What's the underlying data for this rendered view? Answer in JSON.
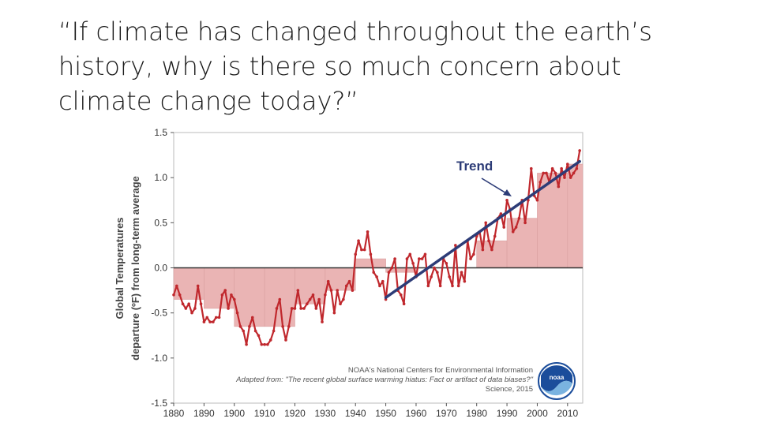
{
  "slide": {
    "title_line1": "“If climate has changed throughout the earth’s",
    "title_line2": "history, why is there so much concern about",
    "title_line3": "climate change today?”"
  },
  "chart_data": {
    "type": "line",
    "title": "",
    "ylabel_line1": "Global Temperatures",
    "ylabel_line2": "departure (ºF) from long-term average",
    "xlim": [
      1880,
      2015
    ],
    "ylim": [
      -1.5,
      1.5
    ],
    "x_ticks": [
      "1880",
      "1890",
      "1900",
      "1910",
      "1920",
      "1930",
      "1940",
      "1950",
      "1960",
      "1970",
      "1980",
      "1990",
      "2000",
      "2010"
    ],
    "y_ticks": [
      "1.5",
      "1.0",
      "0.5",
      "0.0",
      "-0.5",
      "-1.0",
      "-1.5"
    ],
    "grid": false,
    "colors": {
      "line": "#c0282d",
      "bars": "#eab4b4",
      "trend": "#2d3c77",
      "zero": "#333333"
    },
    "series": [
      {
        "x": [
          1880,
          1881,
          1882,
          1883,
          1884,
          1885,
          1886,
          1887,
          1888,
          1889,
          1890,
          1891,
          1892,
          1893,
          1894,
          1895,
          1896,
          1897,
          1898,
          1899,
          1900,
          1901,
          1902,
          1903,
          1904,
          1905,
          1906,
          1907,
          1908,
          1909,
          1910,
          1911,
          1912,
          1913,
          1914,
          1915,
          1916,
          1917,
          1918,
          1919,
          1920,
          1921,
          1922,
          1923,
          1924,
          1925,
          1926,
          1927,
          1928,
          1929,
          1930,
          1931,
          1932,
          1933,
          1934,
          1935,
          1936,
          1937,
          1938,
          1939,
          1940,
          1941,
          1942,
          1943,
          1944,
          1945,
          1946,
          1947,
          1948,
          1949,
          1950,
          1951,
          1952,
          1953,
          1954,
          1955,
          1956,
          1957,
          1958,
          1959,
          1960,
          1961,
          1962,
          1963,
          1964,
          1965,
          1966,
          1967,
          1968,
          1969,
          1970,
          1971,
          1972,
          1973,
          1974,
          1975,
          1976,
          1977,
          1978,
          1979,
          1980,
          1981,
          1982,
          1983,
          1984,
          1985,
          1986,
          1987,
          1988,
          1989,
          1990,
          1991,
          1992,
          1993,
          1994,
          1995,
          1996,
          1997,
          1998,
          1999,
          2000,
          2001,
          2002,
          2003,
          2004,
          2005,
          2006,
          2007,
          2008,
          2009,
          2010,
          2011,
          2012,
          2013,
          2014
        ],
        "values": [
          -0.3,
          -0.2,
          -0.3,
          -0.4,
          -0.45,
          -0.4,
          -0.5,
          -0.45,
          -0.2,
          -0.4,
          -0.6,
          -0.55,
          -0.6,
          -0.6,
          -0.55,
          -0.55,
          -0.3,
          -0.25,
          -0.45,
          -0.3,
          -0.35,
          -0.5,
          -0.65,
          -0.7,
          -0.85,
          -0.65,
          -0.55,
          -0.7,
          -0.75,
          -0.85,
          -0.85,
          -0.85,
          -0.8,
          -0.7,
          -0.45,
          -0.35,
          -0.65,
          -0.8,
          -0.65,
          -0.45,
          -0.45,
          -0.25,
          -0.45,
          -0.45,
          -0.4,
          -0.35,
          -0.3,
          -0.45,
          -0.35,
          -0.6,
          -0.3,
          -0.15,
          -0.25,
          -0.5,
          -0.25,
          -0.4,
          -0.35,
          -0.2,
          -0.15,
          -0.25,
          0.15,
          0.3,
          0.2,
          0.2,
          0.4,
          0.15,
          -0.05,
          -0.1,
          -0.2,
          -0.15,
          -0.35,
          -0.05,
          0.0,
          0.1,
          -0.25,
          -0.3,
          -0.4,
          0.1,
          0.15,
          0.05,
          -0.1,
          0.1,
          0.1,
          0.15,
          -0.2,
          -0.1,
          0.0,
          -0.05,
          -0.2,
          0.1,
          0.05,
          -0.1,
          -0.2,
          0.25,
          -0.2,
          -0.05,
          -0.15,
          0.3,
          0.1,
          0.15,
          0.35,
          0.4,
          0.2,
          0.5,
          0.3,
          0.2,
          0.35,
          0.55,
          0.6,
          0.45,
          0.75,
          0.65,
          0.4,
          0.45,
          0.55,
          0.75,
          0.5,
          0.75,
          1.1,
          0.8,
          0.75,
          0.95,
          1.05,
          1.05,
          0.95,
          1.1,
          1.05,
          0.9,
          1.1,
          1.0,
          1.15,
          1.0,
          1.05,
          1.1,
          1.3
        ]
      }
    ],
    "decadal_bars": [
      {
        "x0": 1880,
        "x1": 1890,
        "value": -0.35
      },
      {
        "x0": 1890,
        "x1": 1900,
        "value": -0.45
      },
      {
        "x0": 1900,
        "x1": 1910,
        "value": -0.65
      },
      {
        "x0": 1910,
        "x1": 1920,
        "value": -0.65
      },
      {
        "x0": 1920,
        "x1": 1930,
        "value": -0.4
      },
      {
        "x0": 1930,
        "x1": 1940,
        "value": -0.25
      },
      {
        "x0": 1940,
        "x1": 1950,
        "value": 0.1
      },
      {
        "x0": 1950,
        "x1": 1960,
        "value": -0.05
      },
      {
        "x0": 1960,
        "x1": 1970,
        "value": 0.0
      },
      {
        "x0": 1970,
        "x1": 1980,
        "value": 0.0
      },
      {
        "x0": 1980,
        "x1": 1990,
        "value": 0.3
      },
      {
        "x0": 1990,
        "x1": 2000,
        "value": 0.55
      },
      {
        "x0": 2000,
        "x1": 2010,
        "value": 1.05
      },
      {
        "x0": 2010,
        "x1": 2015,
        "value": 1.15
      }
    ],
    "trend": {
      "x": [
        1950,
        2014
      ],
      "y": [
        -0.33,
        1.18
      ],
      "label": "Trend"
    },
    "credit": {
      "line1": "NOAA's National Centers for Environmental Information",
      "line2": "Adapted from: \"The recent global surface warming hiatus: Fact or artifact of data biases?\"",
      "line3": "Science, 2015"
    },
    "logo_text": "noaa"
  }
}
